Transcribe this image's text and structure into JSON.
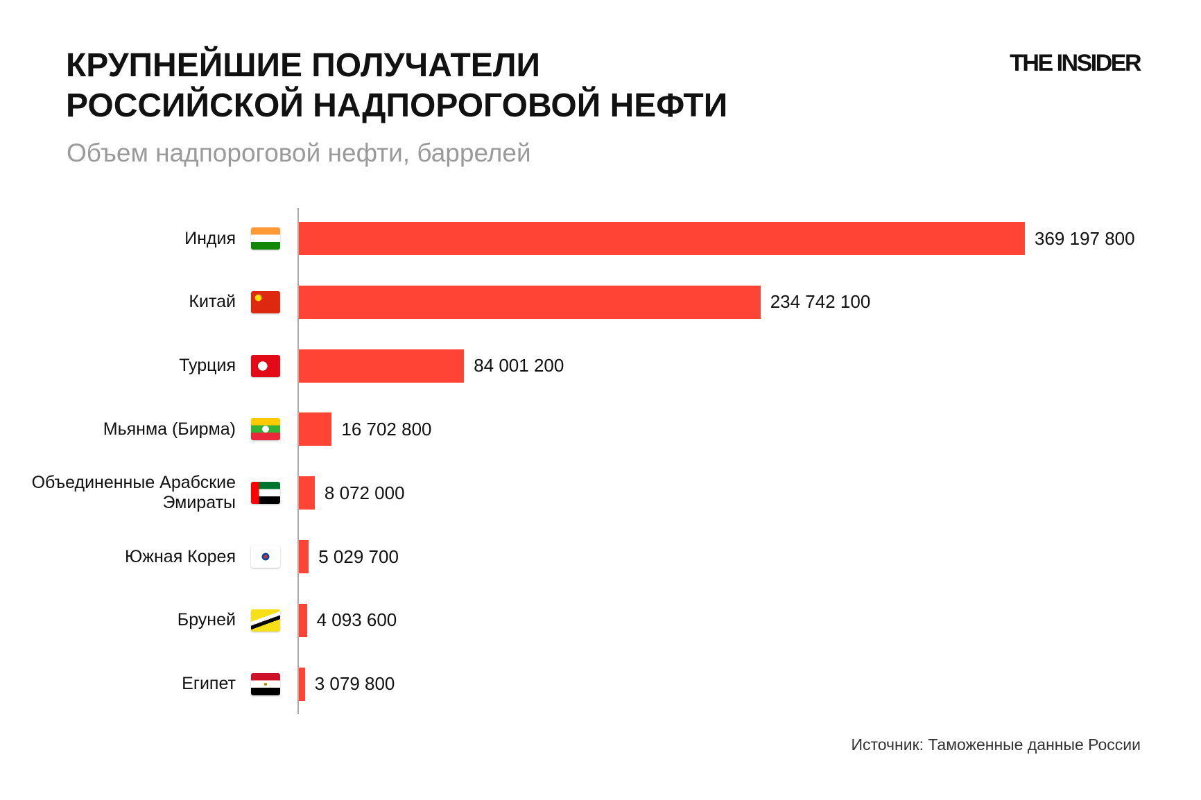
{
  "chart_data": {
    "type": "bar",
    "orientation": "horizontal",
    "title": "КРУПНЕЙШИЕ ПОЛУЧАТЕЛИ\nРОССИЙСКОЙ НАДПОРОГОВОЙ НЕФТИ",
    "subtitle": "Объем надпороговой нефти, баррелей",
    "categories": [
      "Индия",
      "Китай",
      "Турция",
      "Мьянма (Бирма)",
      "Объединенные Арабские Эмираты",
      "Южная Корея",
      "Бруней",
      "Египет"
    ],
    "values": [
      369197800,
      234742100,
      84001200,
      16702800,
      8072000,
      5029700,
      4093600,
      3079800
    ],
    "value_labels": [
      "369 197 800",
      "234 742 100",
      "84 001 200",
      "16 702 800",
      "8 072 000",
      "5 029 700",
      "4 093 600",
      "3 079 800"
    ],
    "flags": [
      "india-flag",
      "china-flag",
      "turkey-flag",
      "myanmar-flag",
      "uae-flag",
      "south-korea-flag",
      "brunei-flag",
      "egypt-flag"
    ],
    "bar_color": "#ff4436",
    "xlim": [
      0,
      369197800
    ],
    "grid": false,
    "legend": "none"
  },
  "header": {
    "title_line1": "КРУПНЕЙШИЕ ПОЛУЧАТЕЛИ",
    "title_line2": "РОССИЙСКОЙ НАДПОРОГОВОЙ НЕФТИ",
    "logo": "THE INSIDER"
  },
  "footer": {
    "source": "Источник: Таможенные данные России"
  }
}
